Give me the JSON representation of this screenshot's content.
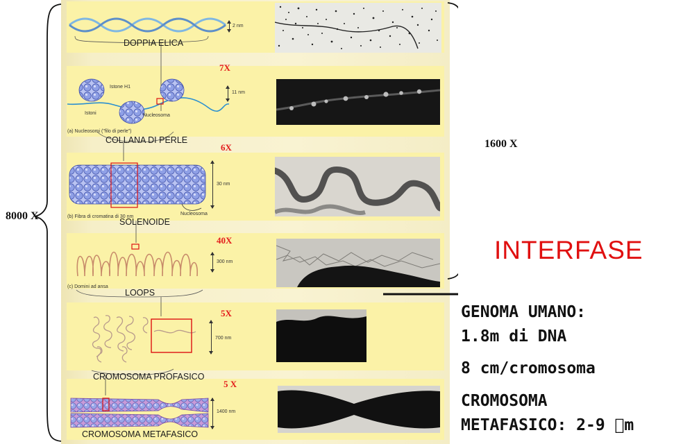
{
  "steps": {
    "double_helix": {
      "label": "DOPPIA ELICA",
      "scale": "2 nm"
    },
    "bead_string": {
      "label": "COLLANA DI PERLE",
      "factor": "7X",
      "scale": "11 nm",
      "histone_label": "Istone H1",
      "histones_label": "Istoni",
      "nucleosome_label": "Nucleosoma",
      "caption": "(a) Nucleosomi (\"filo di perle\")"
    },
    "solenoid": {
      "label": "SOLENOIDE",
      "factor": "6X",
      "scale": "30 nm",
      "nucleosome_label": "Nucleosoma",
      "caption": "(b) Fibra di cromatina di 30 nm"
    },
    "loops": {
      "label": "LOOPS",
      "factor": "40X",
      "scale": "300 nm",
      "caption": "(c) Domini ad ansa"
    },
    "prophase": {
      "label": "CROMOSOMA PROFASICO",
      "factor": "5X",
      "scale": "700 nm"
    },
    "metaphase": {
      "label": "CROMOSOMA METAFASICO",
      "factor": "5 X",
      "scale": "1400 nm"
    }
  },
  "magnifications": {
    "total": "8000 X",
    "interphase": "1600 X"
  },
  "interfase_label": "INTERFASE",
  "facts": {
    "genome_title": "GENOMA UMANO:",
    "genome_dna": "1.8m di DNA",
    "per_chromosome": "8 cm/cromosoma",
    "metaphase_title": "CROMOSOMA",
    "metaphase_size": "METAFASICO: 2-9 m"
  },
  "colors": {
    "accent_red": "#e31b1b",
    "band_yellow": "#fbf2a7",
    "nucleosome_blue": "#8fa0e6",
    "chromosome_purple": "#c8a6e8"
  }
}
